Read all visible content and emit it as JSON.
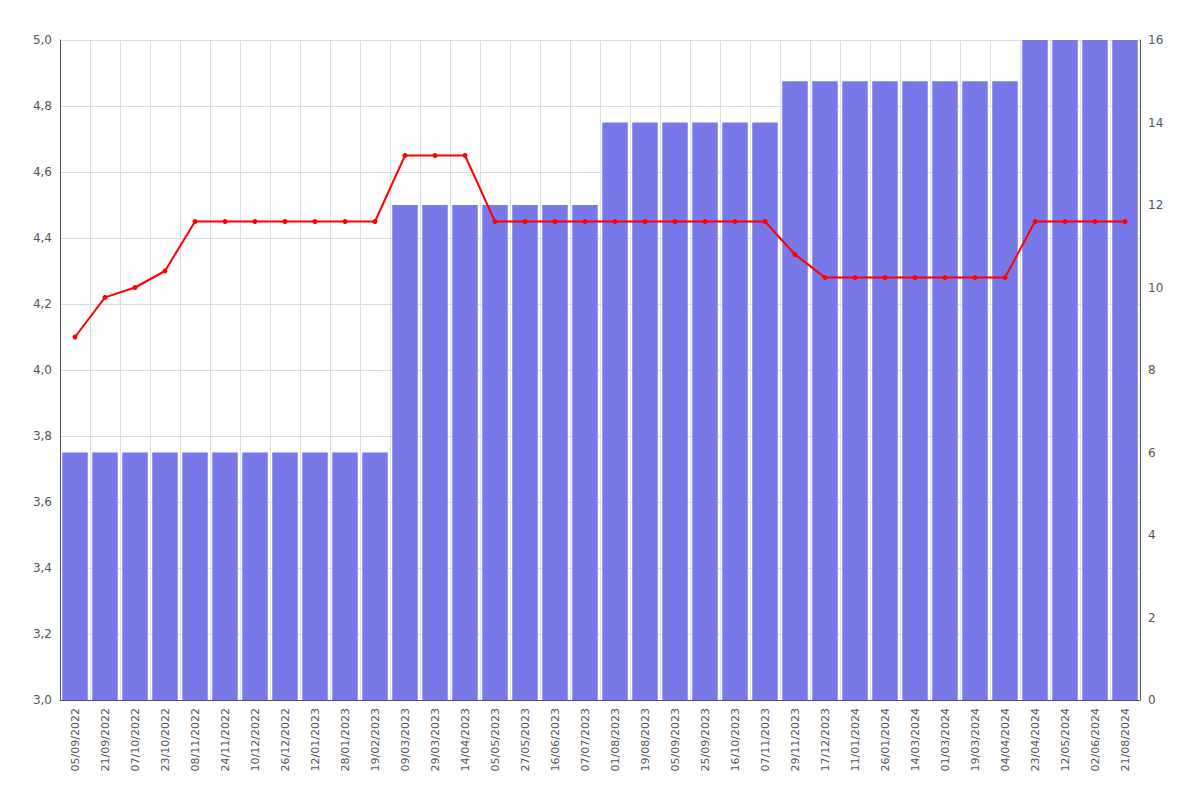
{
  "chart_data": {
    "type": "bar",
    "categories": [
      "05/09/2022",
      "21/09/2022",
      "07/10/2022",
      "23/10/2022",
      "08/11/2022",
      "24/11/2022",
      "10/12/2022",
      "26/12/2022",
      "12/01/2023",
      "28/01/2023",
      "19/02/2023",
      "09/03/2023",
      "29/03/2023",
      "14/04/2023",
      "05/05/2023",
      "27/05/2023",
      "16/06/2023",
      "07/07/2023",
      "01/08/2023",
      "19/08/2023",
      "05/09/2023",
      "25/09/2023",
      "16/10/2023",
      "07/11/2023",
      "29/11/2023",
      "17/12/2023",
      "11/01/2024",
      "26/01/2024",
      "14/03/2024",
      "01/03/2024",
      "19/03/2024",
      "04/04/2024",
      "23/04/2024",
      "12/05/2024",
      "02/06/2024",
      "21/08/2024"
    ],
    "series": [
      {
        "type": "bar",
        "axis": "y2",
        "color": "#7878e8",
        "values": [
          6,
          6,
          6,
          6,
          6,
          6,
          6,
          6,
          6,
          6,
          6,
          12,
          12,
          12,
          12,
          12,
          12,
          12,
          14,
          14,
          14,
          14,
          14,
          14,
          15,
          15,
          15,
          15,
          15,
          15,
          15,
          15,
          16,
          16,
          16,
          16
        ]
      },
      {
        "type": "line",
        "color": "#ff0000",
        "marker": "circle",
        "values": [
          4.1,
          4.22,
          4.25,
          4.3,
          4.45,
          4.45,
          4.45,
          4.45,
          4.45,
          4.45,
          4.45,
          4.65,
          4.65,
          4.65,
          4.45,
          4.45,
          4.45,
          4.45,
          4.45,
          4.45,
          4.45,
          4.45,
          4.45,
          4.45,
          4.35,
          4.28,
          4.28,
          4.28,
          4.28,
          4.28,
          4.28,
          4.28,
          4.45,
          4.45,
          4.45,
          4.45
        ]
      }
    ],
    "ylim": [
      3.0,
      5.0
    ],
    "yticks": [
      {
        "value": 3.0,
        "label": "3,0"
      },
      {
        "value": 3.2,
        "label": "3,2"
      },
      {
        "value": 3.4,
        "label": "3,4"
      },
      {
        "value": 3.6,
        "label": "3,6"
      },
      {
        "value": 3.8,
        "label": "3,8"
      },
      {
        "value": 4.0,
        "label": "4,0"
      },
      {
        "value": 4.2,
        "label": "4,2"
      },
      {
        "value": 4.4,
        "label": "4,4"
      },
      {
        "value": 4.6,
        "label": "4,6"
      },
      {
        "value": 4.8,
        "label": "4,8"
      },
      {
        "value": 5.0,
        "label": "5,0"
      }
    ],
    "y2lim": [
      0,
      16
    ],
    "y2ticks": [
      0,
      2,
      4,
      6,
      8,
      10,
      12,
      14,
      16
    ],
    "grid": true
  }
}
